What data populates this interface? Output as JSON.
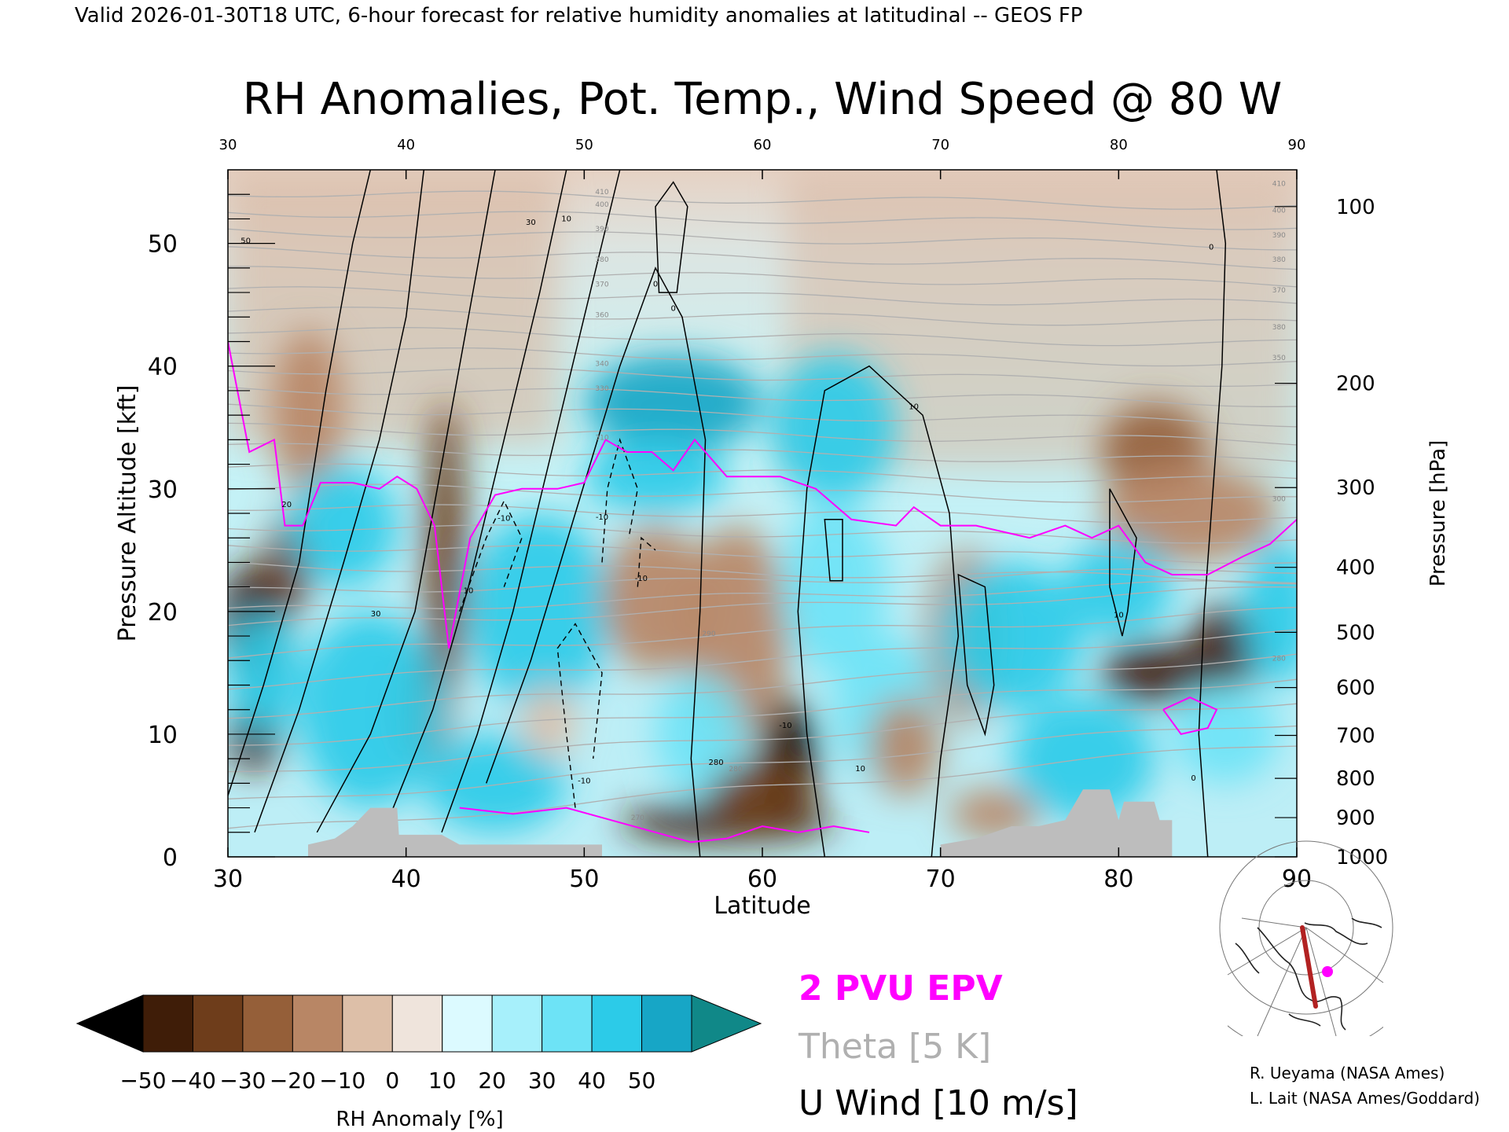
{
  "header": {
    "valid_line": "Valid 2026-01-30T18 UTC, 6-hour forecast for relative humidity anomalies at latitudinal -- GEOS FP"
  },
  "chart_data": {
    "type": "heatmap",
    "title": "RH Anomalies, Pot. Temp., Wind Speed @ 80 W",
    "xlabel": "Latitude",
    "ylabel_left": "Pressure Altitude [kft]",
    "ylabel_right": "Pressure [hPa]",
    "xlim": [
      30,
      90
    ],
    "ylim_kft": [
      0,
      56
    ],
    "x_ticks": [
      "30",
      "40",
      "50",
      "60",
      "70",
      "80",
      "90"
    ],
    "y_ticks_kft": [
      {
        "v": 0,
        "label": "0"
      },
      {
        "v": 10,
        "label": "10"
      },
      {
        "v": 20,
        "label": "20"
      },
      {
        "v": 30,
        "label": "30"
      },
      {
        "v": 40,
        "label": "40"
      },
      {
        "v": 50,
        "label": "50"
      }
    ],
    "pressure_ticks": [
      {
        "v": 0,
        "label": "1000"
      },
      {
        "v": 3.2,
        "label": "900"
      },
      {
        "v": 6.4,
        "label": "800"
      },
      {
        "v": 9.9,
        "label": "700"
      },
      {
        "v": 13.8,
        "label": "600"
      },
      {
        "v": 18.3,
        "label": "500"
      },
      {
        "v": 23.6,
        "label": "400"
      },
      {
        "v": 30.1,
        "label": "300"
      },
      {
        "v": 38.6,
        "label": "200"
      },
      {
        "v": 53.0,
        "label": "100"
      }
    ],
    "anomaly_fields": [
      {
        "lat": 31.5,
        "kft": 10,
        "rh": -55,
        "r": 1.5,
        "ry": 3
      },
      {
        "lat": 31.5,
        "kft": 19,
        "rh": -50,
        "r": 2,
        "ry": 5
      },
      {
        "lat": 33.5,
        "kft": 24,
        "rh": -45,
        "r": 1.3,
        "ry": 4
      },
      {
        "lat": 34.5,
        "kft": 36,
        "rh": -25,
        "r": 2,
        "ry": 7
      },
      {
        "lat": 41,
        "kft": 12,
        "rh": -35,
        "r": 1.6,
        "ry": 5
      },
      {
        "lat": 42.2,
        "kft": 25,
        "rh": -40,
        "r": 1.2,
        "ry": 12
      },
      {
        "lat": 36.5,
        "kft": 27,
        "rh": 35,
        "r": 3,
        "ry": 5
      },
      {
        "lat": 32,
        "kft": 15,
        "rh": 35,
        "r": 2,
        "ry": 5
      },
      {
        "lat": 38,
        "kft": 12,
        "rh": 35,
        "r": 4,
        "ry": 8
      },
      {
        "lat": 47.5,
        "kft": 20,
        "rh": 40,
        "r": 4,
        "ry": 8
      },
      {
        "lat": 45,
        "kft": 6,
        "rh": 40,
        "r": 4,
        "ry": 4
      },
      {
        "lat": 48,
        "kft": 11,
        "rh": -15,
        "r": 1.5,
        "ry": 3
      },
      {
        "lat": 55,
        "kft": 37,
        "rh": 45,
        "r": 5,
        "ry": 4
      },
      {
        "lat": 54,
        "kft": 31,
        "rh": 35,
        "r": 4,
        "ry": 3
      },
      {
        "lat": 54,
        "kft": 21,
        "rh": -25,
        "r": 3,
        "ry": 6
      },
      {
        "lat": 58.5,
        "kft": 18,
        "rh": -20,
        "r": 3,
        "ry": 9
      },
      {
        "lat": 56.5,
        "kft": 10,
        "rh": 30,
        "r": 2.5,
        "ry": 5
      },
      {
        "lat": 58,
        "kft": 2.8,
        "rh": -55,
        "r": 6,
        "ry": 1.6
      },
      {
        "lat": 61.5,
        "kft": 8,
        "rh": -60,
        "r": 1.6,
        "ry": 5
      },
      {
        "lat": 60,
        "kft": 5,
        "rh": -40,
        "r": 3,
        "ry": 3
      },
      {
        "lat": 64,
        "kft": 35,
        "rh": 40,
        "r": 3.5,
        "ry": 6
      },
      {
        "lat": 64,
        "kft": 22,
        "rh": 30,
        "r": 3,
        "ry": 7
      },
      {
        "lat": 67,
        "kft": 12,
        "rh": 25,
        "r": 3,
        "ry": 6
      },
      {
        "lat": 68,
        "kft": 9,
        "rh": -25,
        "r": 2,
        "ry": 4
      },
      {
        "lat": 71.5,
        "kft": 18,
        "rh": -25,
        "r": 2.3,
        "ry": 7
      },
      {
        "lat": 74,
        "kft": 18,
        "rh": 40,
        "r": 4,
        "ry": 6
      },
      {
        "lat": 73,
        "kft": 3.5,
        "rh": -25,
        "r": 2.5,
        "ry": 2
      },
      {
        "lat": 78,
        "kft": 8,
        "rh": 40,
        "r": 4,
        "ry": 5
      },
      {
        "lat": 82,
        "kft": 33,
        "rh": -35,
        "r": 3,
        "ry": 4
      },
      {
        "lat": 84,
        "kft": 28,
        "rh": -20,
        "r": 5,
        "ry": 4
      },
      {
        "lat": 82,
        "kft": 15,
        "rh": -50,
        "r": 3,
        "ry": 2.5
      },
      {
        "lat": 86,
        "kft": 17,
        "rh": -55,
        "r": 2,
        "ry": 3.5
      },
      {
        "lat": 86,
        "kft": 10,
        "rh": 30,
        "r": 3,
        "ry": 4
      },
      {
        "lat": 89,
        "kft": 20,
        "rh": 35,
        "r": 2,
        "ry": 6
      },
      {
        "lat": 80,
        "kft": 22,
        "rh": 35,
        "r": 3,
        "ry": 4
      }
    ],
    "tropopause_2pvu_kft": [
      [
        30,
        42
      ],
      [
        31.2,
        33
      ],
      [
        32.6,
        34
      ],
      [
        33.2,
        27
      ],
      [
        34.2,
        27
      ],
      [
        35.2,
        30.5
      ],
      [
        37,
        30.5
      ],
      [
        38.5,
        30
      ],
      [
        39.5,
        31
      ],
      [
        40.6,
        30
      ],
      [
        41.6,
        27
      ],
      [
        42.4,
        17
      ],
      [
        43.6,
        26
      ],
      [
        45,
        29.5
      ],
      [
        46.5,
        30
      ],
      [
        48.5,
        30
      ],
      [
        50,
        30.5
      ],
      [
        51.2,
        34
      ],
      [
        52.4,
        33
      ],
      [
        53.8,
        33
      ],
      [
        55,
        31.5
      ],
      [
        56.2,
        34
      ],
      [
        58,
        31
      ],
      [
        61,
        31
      ],
      [
        63,
        30
      ],
      [
        65,
        27.5
      ],
      [
        67.5,
        27
      ],
      [
        68.5,
        28.5
      ],
      [
        70,
        27
      ],
      [
        72,
        27
      ],
      [
        75,
        26
      ],
      [
        77,
        27
      ],
      [
        78.5,
        26
      ],
      [
        80,
        27
      ],
      [
        81.5,
        24
      ],
      [
        83,
        23
      ],
      [
        85,
        23
      ],
      [
        87,
        24.5
      ],
      [
        88.5,
        25.5
      ],
      [
        90,
        27.5
      ]
    ],
    "theta_labels": [
      {
        "lat": 51,
        "kft": 54,
        "label": "410"
      },
      {
        "lat": 51,
        "kft": 53,
        "label": "400"
      },
      {
        "lat": 51,
        "kft": 51,
        "label": "390"
      },
      {
        "lat": 51,
        "kft": 48.5,
        "label": "380"
      },
      {
        "lat": 51,
        "kft": 46.5,
        "label": "370"
      },
      {
        "lat": 51,
        "kft": 44,
        "label": "360"
      },
      {
        "lat": 51,
        "kft": 40,
        "label": "340"
      },
      {
        "lat": 51,
        "kft": 38,
        "label": "330"
      },
      {
        "lat": 51,
        "kft": 34,
        "label": "310"
      },
      {
        "lat": 57,
        "kft": 18,
        "label": "290"
      },
      {
        "lat": 53,
        "kft": 3,
        "label": "270"
      },
      {
        "lat": 58.5,
        "kft": 7,
        "label": "280"
      },
      {
        "lat": 89,
        "kft": 54.7,
        "label": "410"
      },
      {
        "lat": 89,
        "kft": 52.5,
        "label": "400"
      },
      {
        "lat": 89,
        "kft": 50.5,
        "label": "390"
      },
      {
        "lat": 89,
        "kft": 48.5,
        "label": "380"
      },
      {
        "lat": 89,
        "kft": 46,
        "label": "370"
      },
      {
        "lat": 89,
        "kft": 43,
        "label": "380"
      },
      {
        "lat": 89,
        "kft": 40.5,
        "label": "350"
      },
      {
        "lat": 89,
        "kft": 29,
        "label": "300"
      },
      {
        "lat": 89,
        "kft": 16,
        "label": "280"
      }
    ],
    "wind_labels": [
      {
        "lat": 31,
        "kft": 50,
        "label": "50"
      },
      {
        "lat": 33.3,
        "kft": 28.5,
        "label": "20"
      },
      {
        "lat": 38.3,
        "kft": 19.6,
        "label": "30"
      },
      {
        "lat": 43.5,
        "kft": 21.5,
        "label": "10"
      },
      {
        "lat": 47,
        "kft": 51.5,
        "label": "30"
      },
      {
        "lat": 49,
        "kft": 51.8,
        "label": "10"
      },
      {
        "lat": 45.5,
        "kft": 27.4,
        "label": "-10"
      },
      {
        "lat": 51,
        "kft": 27.5,
        "label": "-10"
      },
      {
        "lat": 53.2,
        "kft": 22.5,
        "label": "-10"
      },
      {
        "lat": 50,
        "kft": 6,
        "label": "-10"
      },
      {
        "lat": 55,
        "kft": 44.5,
        "label": "0"
      },
      {
        "lat": 54,
        "kft": 46.5,
        "label": "0"
      },
      {
        "lat": 61.3,
        "kft": 10.5,
        "label": "-10"
      },
      {
        "lat": 65.5,
        "kft": 7,
        "label": "10"
      },
      {
        "lat": 68.5,
        "kft": 36.5,
        "label": "10"
      },
      {
        "lat": 80,
        "kft": 19.5,
        "label": "10"
      },
      {
        "lat": 85.2,
        "kft": 49.5,
        "label": "0"
      },
      {
        "lat": 84.2,
        "kft": 6.2,
        "label": "0"
      },
      {
        "lat": 57.4,
        "kft": 7.5,
        "label": "280"
      }
    ],
    "colorbar": {
      "label": "RH Anomaly [%]",
      "tick_labels": [
        "-50",
        "-40",
        "-30",
        "-20",
        "-10",
        "0",
        "10",
        "20",
        "30",
        "40",
        "50"
      ],
      "colors": [
        "#000000",
        "#3f1d08",
        "#6e3d1b",
        "#955f39",
        "#b88665",
        "#ddbfa8",
        "#efe4dc",
        "#dcfaff",
        "#a7f0fb",
        "#6de3f6",
        "#2ccbe8",
        "#17a6c6",
        "#108888"
      ]
    },
    "legend": {
      "epv": "2 PVU EPV",
      "theta": "Theta [5 K]",
      "uwind": "U Wind [10 m/s]"
    },
    "colors": {
      "epv": "#ff00ff",
      "theta": "#b0b0b0",
      "terrain": "#bdbdbd",
      "route": "#b22222"
    },
    "credits": {
      "line1": "R. Ueyama (NASA Ames)",
      "line2": "L. Lait (NASA Ames/Goddard)"
    }
  }
}
